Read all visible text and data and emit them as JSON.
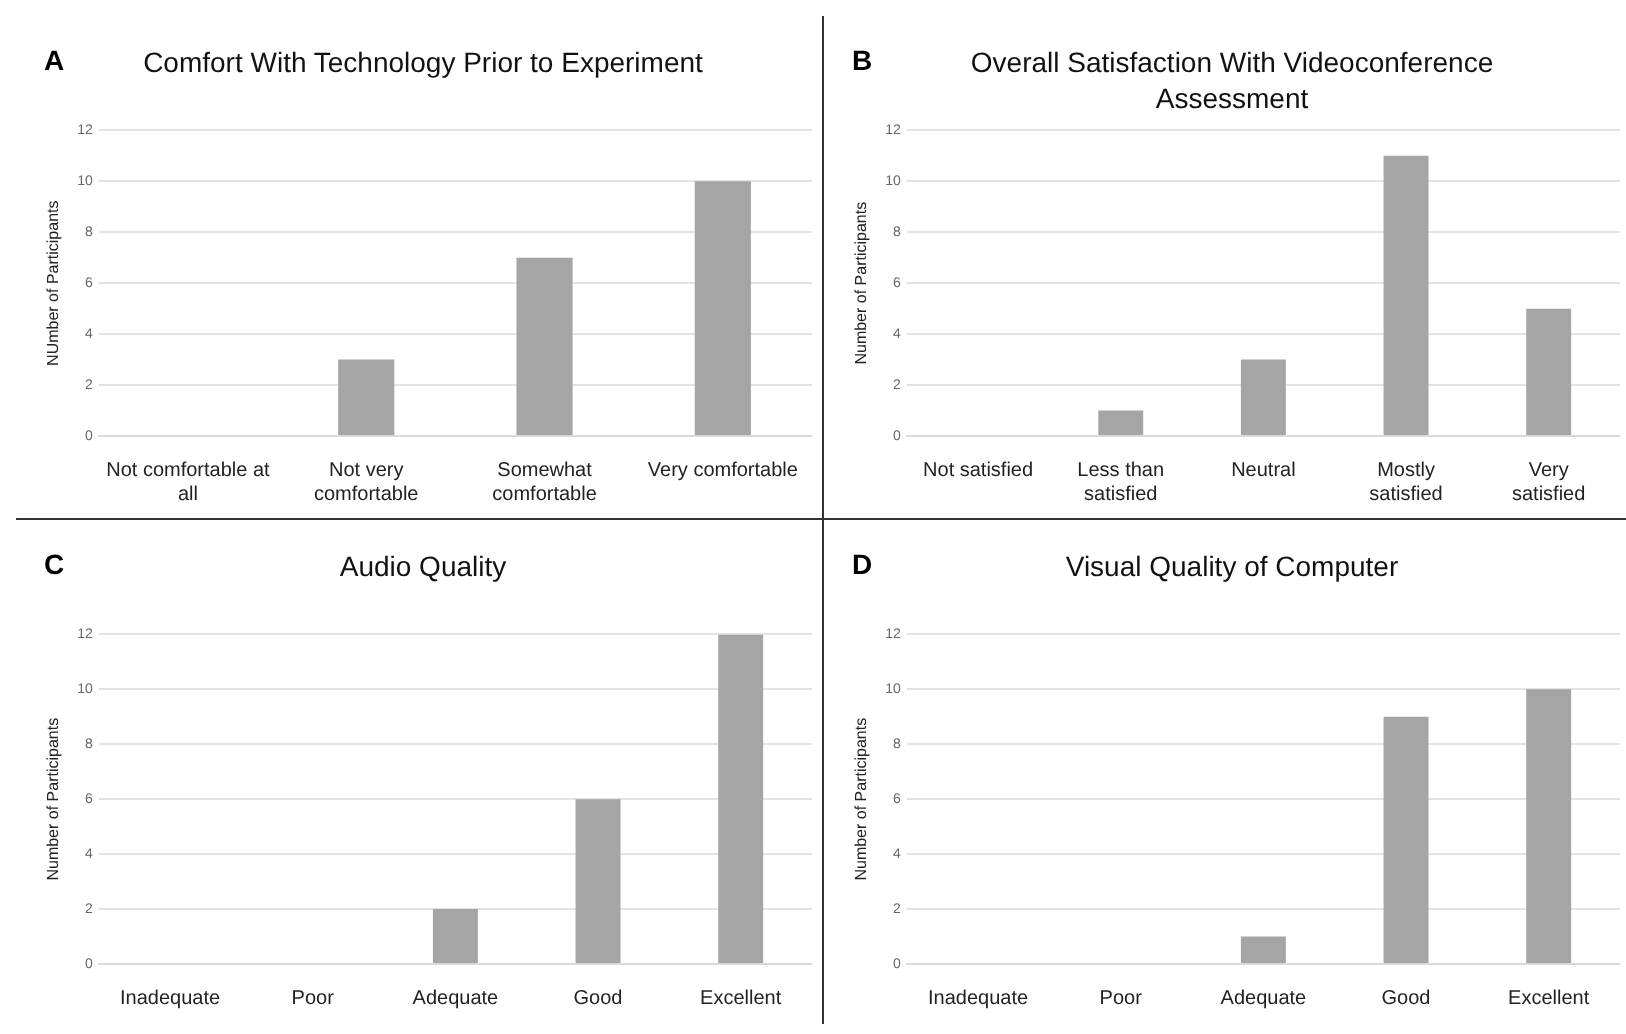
{
  "chart_data": [
    {
      "type": "bar",
      "title": "Comfort With Technology Prior to Experiment",
      "annotations": [
        "A"
      ],
      "ylabel": "NUmber of Participants",
      "categories": [
        "Not comfortable at all",
        "Not very comfortable",
        "Somewhat comfortable",
        "Very comfortable"
      ],
      "values": [
        0,
        3,
        7,
        10
      ],
      "color": "#a5a5a5",
      "ylim": [
        0,
        12
      ],
      "yticks": [
        0,
        2,
        4,
        6,
        8,
        10,
        12
      ],
      "grid": "y",
      "legend": false
    },
    {
      "type": "bar",
      "title": "Overall Satisfaction With Videoconference Assessment",
      "annotations": [
        "B"
      ],
      "ylabel": "Number of Participants",
      "categories": [
        "Not satisfied",
        "Less than satisfied",
        "Neutral",
        "Mostly satisfied",
        "Very satisfied"
      ],
      "values": [
        0,
        1,
        3,
        11,
        5
      ],
      "color": "#a5a5a5",
      "ylim": [
        0,
        12
      ],
      "yticks": [
        0,
        2,
        4,
        6,
        8,
        10,
        12
      ],
      "grid": "y",
      "legend": false
    },
    {
      "type": "bar",
      "title": "Audio Quality",
      "annotations": [
        "C"
      ],
      "ylabel": "Number of Participants",
      "categories": [
        "Inadequate",
        "Poor",
        "Adequate",
        "Good",
        "Excellent"
      ],
      "values": [
        0,
        0,
        2,
        6,
        12
      ],
      "color": "#a5a5a5",
      "ylim": [
        0,
        12
      ],
      "yticks": [
        0,
        2,
        4,
        6,
        8,
        10,
        12
      ],
      "grid": "y",
      "legend": false
    },
    {
      "type": "bar",
      "title": "Visual Quality of Computer",
      "annotations": [
        "D"
      ],
      "ylabel": "Number of Participants",
      "categories": [
        "Inadequate",
        "Poor",
        "Adequate",
        "Good",
        "Excellent"
      ],
      "values": [
        0,
        0,
        1,
        9,
        10
      ],
      "color": "#a5a5a5",
      "ylim": [
        0,
        12
      ],
      "yticks": [
        0,
        2,
        4,
        6,
        8,
        10,
        12
      ],
      "grid": "y",
      "legend": false
    }
  ]
}
